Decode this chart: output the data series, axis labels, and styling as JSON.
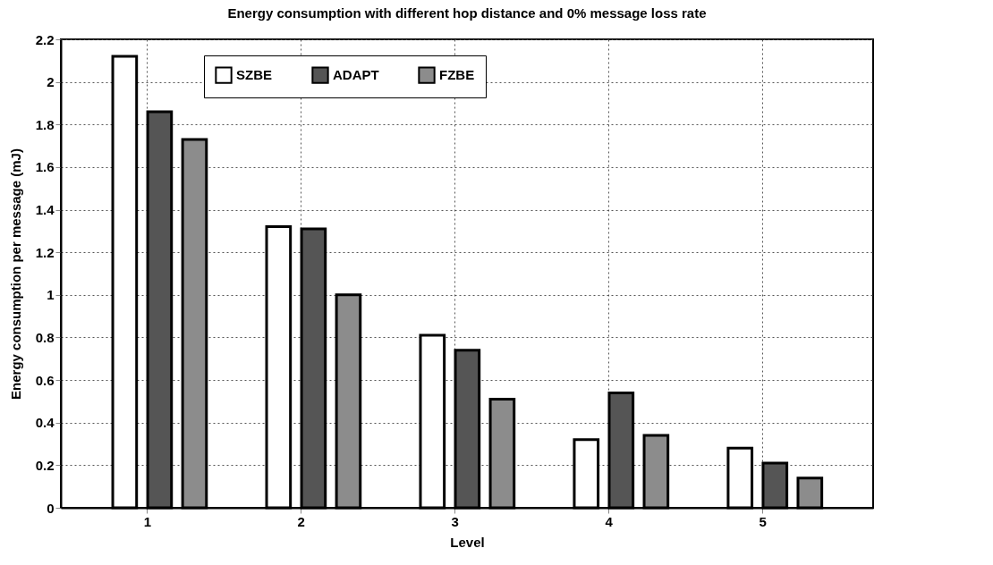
{
  "chart_data": {
    "type": "bar",
    "title": "Energy consumption with different hop distance and 0% message loss rate",
    "xlabel": "Level",
    "ylabel": "Energy consumption per message (mJ)",
    "x": [
      1,
      2,
      3,
      4,
      5
    ],
    "xlim": [
      0.44,
      5.72
    ],
    "xticks": [
      1,
      2,
      3,
      4,
      5
    ],
    "ylim": [
      0,
      2.2
    ],
    "yticks": [
      0,
      0.2,
      0.4,
      0.6,
      0.8,
      1,
      1.2,
      1.4,
      1.6,
      1.8,
      2,
      2.2
    ],
    "series": [
      {
        "name": "SZBE",
        "color": "#ffffff",
        "values": [
          2.12,
          1.32,
          0.81,
          0.32,
          0.28
        ]
      },
      {
        "name": "ADAPT",
        "color": "#555555",
        "values": [
          1.86,
          1.31,
          0.74,
          0.54,
          0.21
        ]
      },
      {
        "name": "FZBE",
        "color": "#8c8c8c",
        "values": [
          1.73,
          1.0,
          0.51,
          0.34,
          0.14
        ]
      }
    ],
    "grid": true,
    "legend": "top"
  }
}
